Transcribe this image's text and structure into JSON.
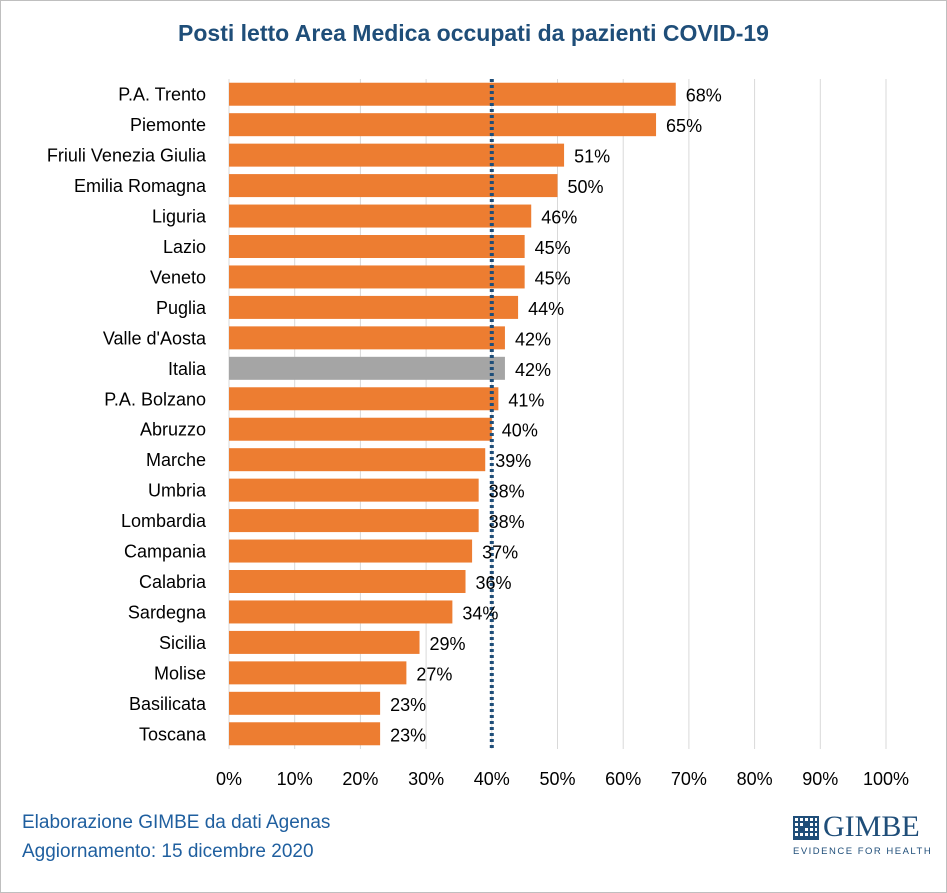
{
  "chart_data": {
    "type": "bar",
    "orientation": "horizontal",
    "title": "Posti letto Area Medica occupati da pazienti COVID-19",
    "categories": [
      "P.A. Trento",
      "Piemonte",
      "Friuli Venezia Giulia",
      "Emilia Romagna",
      "Liguria",
      "Lazio",
      "Veneto",
      "Puglia",
      "Valle d'Aosta",
      "Italia",
      "P.A. Bolzano",
      "Abruzzo",
      "Marche",
      "Umbria",
      "Lombardia",
      "Campania",
      "Calabria",
      "Sardegna",
      "Sicilia",
      "Molise",
      "Basilicata",
      "Toscana"
    ],
    "values": [
      68,
      65,
      51,
      50,
      46,
      45,
      45,
      44,
      42,
      42,
      41,
      40,
      39,
      38,
      38,
      37,
      36,
      34,
      29,
      27,
      23,
      23
    ],
    "data_labels": [
      "68%",
      "65%",
      "51%",
      "50%",
      "46%",
      "45%",
      "45%",
      "44%",
      "42%",
      "42%",
      "41%",
      "40%",
      "39%",
      "38%",
      "38%",
      "37%",
      "36%",
      "34%",
      "29%",
      "27%",
      "23%",
      "23%"
    ],
    "highlight_category": "Italia",
    "xlim": [
      0,
      100
    ],
    "x_ticks": [
      "0%",
      "10%",
      "20%",
      "30%",
      "40%",
      "50%",
      "60%",
      "70%",
      "80%",
      "90%",
      "100%"
    ],
    "threshold": 40,
    "grid": true,
    "colors": {
      "bar": "#ed7d31",
      "highlight": "#a5a5a5",
      "threshold": "#1f4e79",
      "grid": "#d9d9d9"
    }
  },
  "footer": {
    "source": "Elaborazione GIMBE da dati Agenas",
    "updated": "Aggiornamento: 15 dicembre 2020"
  },
  "logo": {
    "text": "GIMBE",
    "tagline": "EVIDENCE FOR HEALTH"
  }
}
